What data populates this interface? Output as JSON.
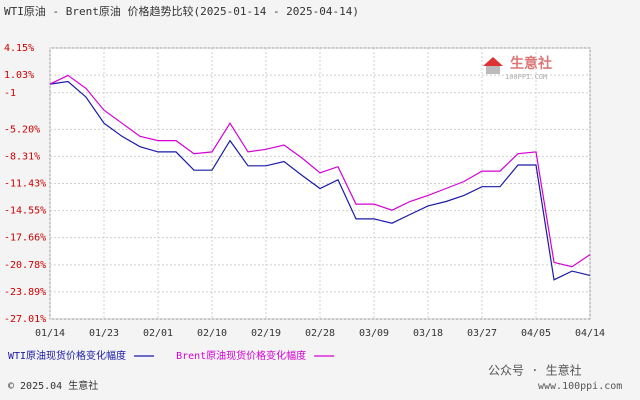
{
  "chart_data": {
    "type": "line",
    "title": "WTI原油 - Brent原油 价格趋势比较(2025-01-14 - 2025-04-14)",
    "categories": [
      "01/14",
      null,
      null,
      "01/23",
      null,
      null,
      "02/01",
      null,
      null,
      "02/10",
      null,
      null,
      "02/19",
      null,
      null,
      "02/28",
      null,
      null,
      "03/09",
      null,
      null,
      "03/18",
      null,
      null,
      "03/27",
      null,
      null,
      "04/05",
      null,
      null,
      "04/14"
    ],
    "series": [
      {
        "name": "WTI原油现货价格变化幅度",
        "color": "#1a1aa6",
        "values": [
          0,
          0.3,
          -1.5,
          -4.5,
          -6.0,
          -7.2,
          -7.8,
          -7.8,
          -9.9,
          -9.9,
          -6.5,
          -9.4,
          -9.4,
          -8.9,
          -10.5,
          -12.0,
          -11.0,
          -15.5,
          -15.5,
          -16.0,
          -15.0,
          -14.0,
          -13.5,
          -12.8,
          -11.8,
          -11.8,
          -9.3,
          -9.3,
          -22.5,
          -21.5,
          -22.0
        ]
      },
      {
        "name": "Brent原油现货价格变化幅度",
        "color": "#d400d4",
        "values": [
          0,
          1.0,
          -0.5,
          -3.0,
          -4.5,
          -6.0,
          -6.5,
          -6.5,
          -8.0,
          -7.8,
          -4.5,
          -7.8,
          -7.5,
          -7.0,
          -8.5,
          -10.2,
          -9.5,
          -13.8,
          -13.8,
          -14.5,
          -13.5,
          -12.8,
          -12.0,
          -11.2,
          -10.0,
          -10.0,
          -8.0,
          -7.8,
          -20.5,
          -21.0,
          -19.6
        ]
      }
    ],
    "ylim": [
      -27.01,
      4.15
    ],
    "yticks": [
      {
        "value": 4.15,
        "label": "4.15%"
      },
      {
        "value": 1.03,
        "label": "1.03%"
      },
      -1,
      {
        "value": -5.2,
        "label": "-5.20%"
      },
      {
        "value": -8.31,
        "label": "-8.31%"
      },
      {
        "value": -11.43,
        "label": "-11.43%"
      },
      {
        "value": -14.55,
        "label": "-14.55%"
      },
      {
        "value": -17.66,
        "label": "-17.66%"
      },
      {
        "value": -20.78,
        "label": "-20.78%"
      },
      {
        "value": -23.89,
        "label": "-23.89%"
      },
      {
        "value": -27.01,
        "label": "-27.01%"
      }
    ],
    "grid": true,
    "logo": {
      "name": "生意社",
      "site": "100PPI.COM"
    },
    "footer": "© 2025.04 生意社",
    "watermark": "公众号 · 生意社",
    "watermark_site": "www.100ppi.com"
  }
}
